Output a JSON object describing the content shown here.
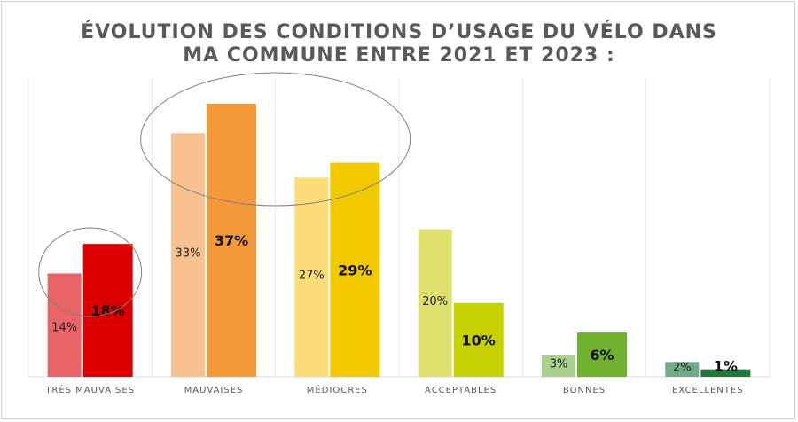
{
  "chart_data": {
    "type": "bar",
    "title_lines": [
      "ÉVOLUTION DES CONDITIONS D’USAGE DU VÉLO DANS",
      "MA COMMUNE ENTRE 2021 ET 2023 :"
    ],
    "categories": [
      "TRÈS MAUVAISES",
      "MAUVAISES",
      "MÉDIOCRES",
      "ACCEPTABLES",
      "BONNES",
      "EXCELLENTES"
    ],
    "series": [
      {
        "values": [
          14,
          33,
          27,
          20,
          3,
          2
        ],
        "colors": [
          "#E96467",
          "#F7C28F",
          "#FCDD79",
          "#DEE16E",
          "#A9D18E",
          "#70AD87"
        ]
      },
      {
        "values": [
          18,
          37,
          29,
          10,
          6,
          1
        ],
        "colors": [
          "#DC0000",
          "#F2993A",
          "#F2C800",
          "#C5D200",
          "#70B22F",
          "#1D7A3A"
        ]
      }
    ],
    "value_suffix": "%",
    "ylim": [
      0,
      42
    ],
    "grid": "vertical",
    "highlight_ellipses_categories": [
      [
        "TRÈS MAUVAISES"
      ],
      [
        "MAUVAISES",
        "MÉDIOCRES"
      ]
    ]
  }
}
